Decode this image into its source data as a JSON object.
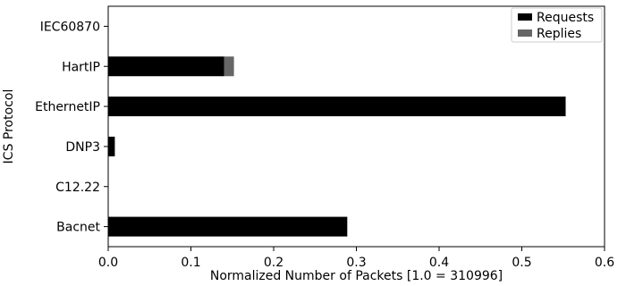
{
  "chart_data": {
    "type": "bar",
    "orientation": "horizontal",
    "stacked": true,
    "categories": [
      "Bacnet",
      "C12.22",
      "DNP3",
      "EthernetIP",
      "HartIP",
      "IEC60870"
    ],
    "series": [
      {
        "name": "Requests",
        "values": [
          0.289,
          0.0,
          0.008,
          0.553,
          0.14,
          0.0
        ],
        "color": "#000000"
      },
      {
        "name": "Replies",
        "values": [
          0.0,
          0.0,
          0.0,
          0.0,
          0.012,
          0.0
        ],
        "color": "#666666"
      }
    ],
    "xlabel": "Normalized Number of Packets [1.0 = 310996]",
    "ylabel": "ICS Protocol",
    "xlim": [
      0.0,
      0.6
    ],
    "xticks": [
      "0.0",
      "0.1",
      "0.2",
      "0.3",
      "0.4",
      "0.5",
      "0.6"
    ],
    "grid": false,
    "legend_position": "top-right"
  }
}
